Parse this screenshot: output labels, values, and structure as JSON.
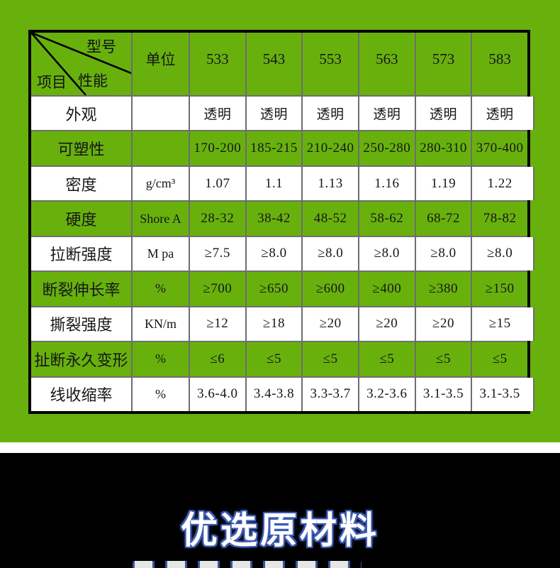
{
  "colors": {
    "green": "#68b10d",
    "grid_line": "#6e6e6e",
    "outer_border": "#000000",
    "headline_fill": "#ffffff",
    "headline_glow": "#3f5cb5",
    "footer_background": "#000000"
  },
  "table": {
    "corner": {
      "top_label": "型号",
      "middle_label": "性能",
      "bottom_label": "项目"
    },
    "unit_header": "单位",
    "models": [
      "533",
      "543",
      "553",
      "563",
      "573",
      "583"
    ],
    "rows": [
      {
        "label": "外观",
        "unit": "",
        "values": [
          "透明",
          "透明",
          "透明",
          "透明",
          "透明",
          "透明"
        ]
      },
      {
        "label": "可塑性",
        "unit": "",
        "values": [
          "170-200",
          "185-215",
          "210-240",
          "250-280",
          "280-310",
          "370-400"
        ]
      },
      {
        "label": "密度",
        "unit": "g/cm³",
        "values": [
          "1.07",
          "1.1",
          "1.13",
          "1.16",
          "1.19",
          "1.22"
        ]
      },
      {
        "label": "硬度",
        "unit": "Shore A",
        "values": [
          "28-32",
          "38-42",
          "48-52",
          "58-62",
          "68-72",
          "78-82"
        ]
      },
      {
        "label": "拉断强度",
        "unit": "M pa",
        "values": [
          "≥7.5",
          "≥8.0",
          "≥8.0",
          "≥8.0",
          "≥8.0",
          "≥8.0"
        ]
      },
      {
        "label": "断裂伸长率",
        "unit": "%",
        "values": [
          "≥700",
          "≥650",
          "≥600",
          "≥400",
          "≥380",
          "≥150"
        ]
      },
      {
        "label": "撕裂强度",
        "unit": "KN/m",
        "values": [
          "≥12",
          "≥18",
          "≥20",
          "≥20",
          "≥20",
          "≥15"
        ]
      },
      {
        "label": "扯断永久变形",
        "unit": "%",
        "values": [
          "≤6",
          "≤5",
          "≤5",
          "≤5",
          "≤5",
          "≤5"
        ]
      },
      {
        "label": "线收缩率",
        "unit": "%",
        "values": [
          "3.6-4.0",
          "3.4-3.8",
          "3.3-3.7",
          "3.2-3.6",
          "3.1-3.5",
          "3.1-3.5"
        ]
      }
    ]
  },
  "footer": {
    "headline": "优选原材料"
  }
}
